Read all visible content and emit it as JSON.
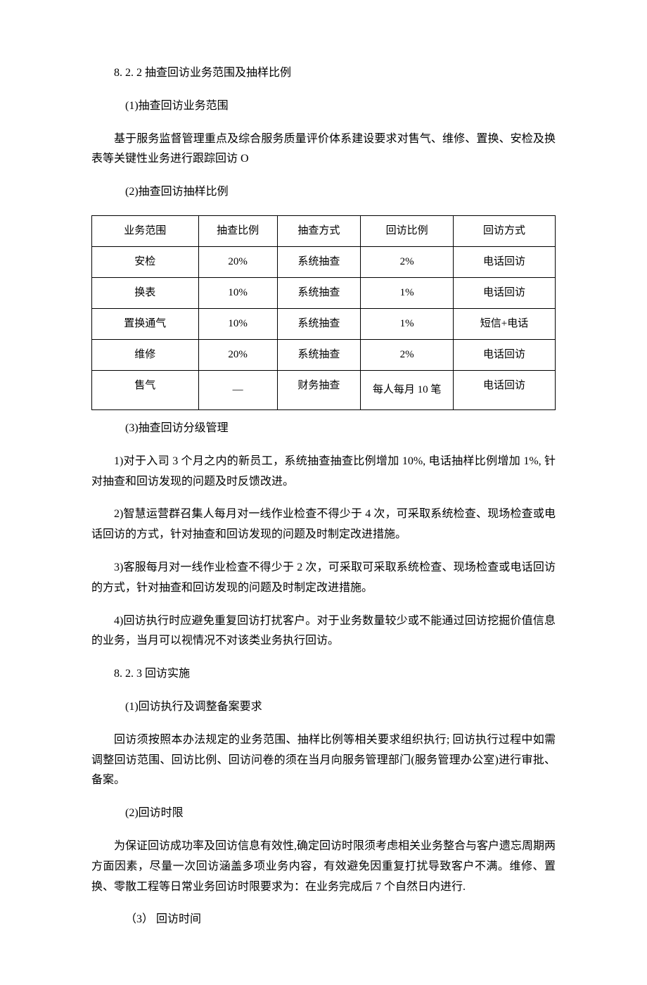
{
  "doc": {
    "section_822": "8. 2. 2 抽查回访业务范围及抽样比例",
    "item1_heading": "(1)抽查回访业务范围",
    "item1_body": "基于服务监督管理重点及综合服务质量评价体系建设要求对售气、维修、置换、安检及换表等关键性业务进行跟踪回访 O",
    "item2_heading": "(2)抽查回访抽样比例",
    "table": {
      "headers": [
        "业务范围",
        "抽查比例",
        "抽查方式",
        "回访比例",
        "回访方式"
      ],
      "rows": [
        [
          "安检",
          "20%",
          "系统抽查",
          "2%",
          "电话回访"
        ],
        [
          "换表",
          "10%",
          "系统抽查",
          "1%",
          "电话回访"
        ],
        [
          "置换通气",
          "10%",
          "系统抽查",
          "1%",
          "短信+电话"
        ],
        [
          "维修",
          "20%",
          "系统抽查",
          "2%",
          "电话回访"
        ],
        [
          "售气",
          "—",
          "财务抽查",
          "每人每月 10 笔",
          "电话回访"
        ]
      ]
    },
    "item3_heading": "(3)抽查回访分级管理",
    "item3_p1": "1)对于入司 3 个月之内的新员工，系统抽查抽查比例增加 10%, 电话抽样比例增加 1%, 针对抽查和回访发现的问题及时反馈改进。",
    "item3_p2": "2)智慧运营群召集人每月对一线作业检查不得少于 4 次，可采取系统检查、现场检查或电话回访的方式，针对抽查和回访发现的问题及时制定改进措施。",
    "item3_p3": "3)客服每月对一线作业检查不得少于 2 次，可采取可采取系统检查、现场检查或电话回访的方式，针对抽查和回访发现的问题及时制定改进措施。",
    "item3_p4": "4)回访执行时应避免重复回访打扰客户。对于业务数量较少或不能通过回访挖掘价值信息的业务，当月可以视情况不对该类业务执行回访。",
    "section_823": "8. 2. 3 回访实施",
    "item823_1_heading": "(1)回访执行及调整备案要求",
    "item823_1_body": "回访须按照本办法规定的业务范围、抽样比例等相关要求组织执行; 回访执行过程中如需调整回访范围、回访比例、回访问卷的须在当月向服务管理部门(服务管理办公室)进行审批、备案。",
    "item823_2_heading": "(2)回访时限",
    "item823_2_body": "为保证回访成功率及回访信息有效性,确定回访时限须考虑相关业务整合与客户遗忘周期两方面因素，尽量一次回访涵盖多项业务内容，有效避免因重复打扰导致客户不满。维修、置换、零散工程等日常业务回访时限要求为：在业务完成后 7 个自然日内进行.",
    "item823_3_heading": "（3） 回访时间"
  }
}
